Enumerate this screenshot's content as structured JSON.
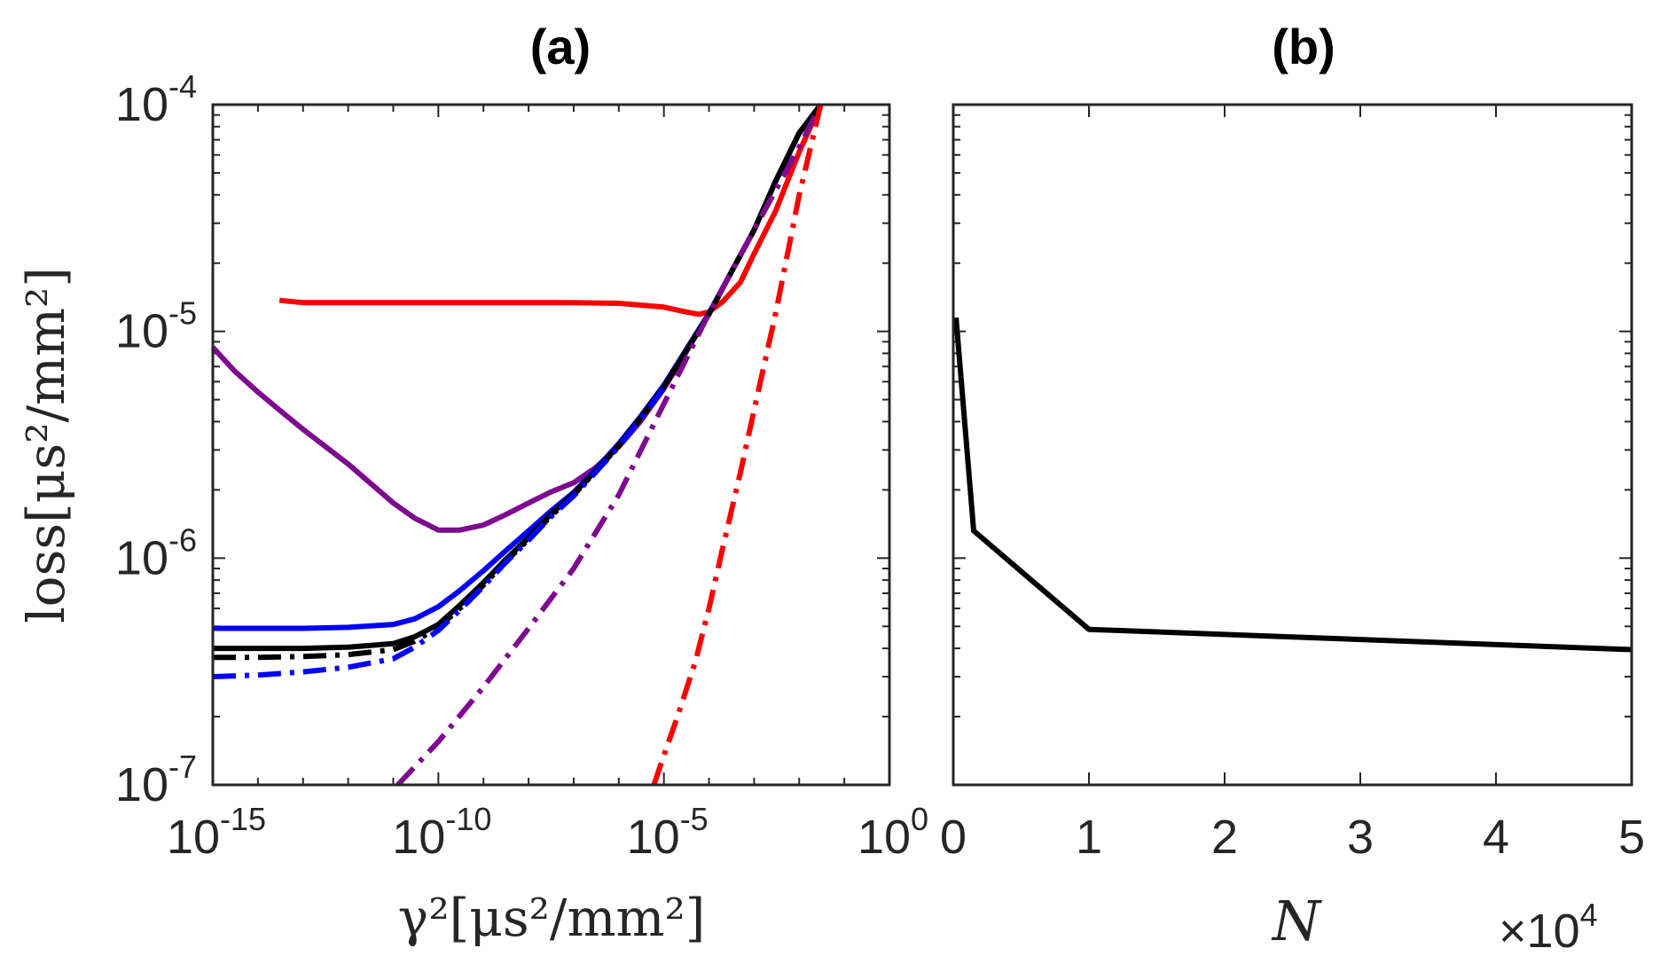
{
  "chart_data": [
    {
      "panel": "a",
      "type": "line",
      "title": "(a)",
      "xscale": "log",
      "yscale": "log",
      "xlim": [
        1e-15,
        1
      ],
      "ylim": [
        1e-07,
        0.0001
      ],
      "xlabel": "γ²[μs²/mm²]",
      "ylabel": "loss[μs²/mm²]",
      "xtick_labels": [
        {
          "base": "10",
          "exp": "-15",
          "value": 1e-15
        },
        {
          "base": "10",
          "exp": "-10",
          "value": 1e-10
        },
        {
          "base": "10",
          "exp": "-5",
          "value": 1e-05
        },
        {
          "base": "10",
          "exp": "0",
          "value": 1
        }
      ],
      "ytick_labels": [
        {
          "base": "10",
          "exp": "-7",
          "value": 1e-07
        },
        {
          "base": "10",
          "exp": "-6",
          "value": 1e-06
        },
        {
          "base": "10",
          "exp": "-5",
          "value": 1e-05
        },
        {
          "base": "10",
          "exp": "-4",
          "value": 0.0001
        }
      ],
      "series": [
        {
          "name": "red-solid",
          "color": "#ff0000",
          "dash": "solid",
          "x": [
            3e-14,
            1e-13,
            1e-12,
            1e-11,
            1e-10,
            1e-09,
            1e-08,
            1e-07,
            1e-06,
            1e-05,
            3e-05,
            6e-05,
            0.0001,
            0.0002,
            0.0005,
            0.001,
            0.003,
            0.01,
            0.03
          ],
          "y": [
            1.37e-05,
            1.34e-05,
            1.34e-05,
            1.34e-05,
            1.34e-05,
            1.34e-05,
            1.34e-05,
            1.34e-05,
            1.33e-05,
            1.28e-05,
            1.22e-05,
            1.19e-05,
            1.22e-05,
            1.35e-05,
            1.65e-05,
            2.2e-05,
            3.4e-05,
            6.2e-05,
            0.0001
          ]
        },
        {
          "name": "purple-solid",
          "color": "#7e0a8f",
          "dash": "solid",
          "x": [
            1e-15,
            3e-15,
            1e-14,
            3e-14,
            1e-13,
            1e-12,
            1e-11,
            3e-11,
            1e-10,
            3e-10,
            1e-09,
            3e-09,
            1e-08,
            3e-08,
            1e-07,
            3e-07,
            1e-06,
            3e-06,
            1e-05,
            3e-05,
            0.0001,
            0.0003,
            0.001,
            0.003,
            0.01,
            0.03
          ],
          "y": [
            8.5e-06,
            6.7e-06,
            5.4e-06,
            4.5e-06,
            3.7e-06,
            2.6e-06,
            1.75e-06,
            1.5e-06,
            1.33e-06,
            1.33e-06,
            1.4e-06,
            1.55e-06,
            1.75e-06,
            1.95e-06,
            2.15e-06,
            2.5e-06,
            3.1e-06,
            4e-06,
            5.6e-06,
            8e-06,
            1.2e-05,
            1.8e-05,
            2.8e-05,
            4.6e-05,
            7.5e-05,
            0.0001
          ]
        },
        {
          "name": "blue-solid",
          "color": "#0000ff",
          "dash": "solid",
          "x": [
            1e-15,
            1e-14,
            1e-13,
            1e-12,
            1e-11,
            3e-11,
            1e-10,
            3e-10,
            1e-09,
            3e-09,
            1e-08,
            3e-08,
            1e-07,
            3e-07,
            1e-06,
            3e-06,
            1e-05,
            3e-05,
            0.0001,
            0.0003,
            0.001,
            0.003,
            0.01,
            0.03
          ],
          "y": [
            4.9e-07,
            4.9e-07,
            4.9e-07,
            4.95e-07,
            5.1e-07,
            5.4e-07,
            6.1e-07,
            7.2e-07,
            8.8e-07,
            1.07e-06,
            1.32e-06,
            1.6e-06,
            1.95e-06,
            2.45e-06,
            3.2e-06,
            4.2e-06,
            5.8e-06,
            8.2e-06,
            1.2e-05,
            1.8e-05,
            2.8e-05,
            4.6e-05,
            7.5e-05,
            0.0001
          ]
        },
        {
          "name": "black-solid",
          "color": "#000000",
          "dash": "solid",
          "x": [
            1e-15,
            1e-14,
            1e-13,
            1e-12,
            1e-11,
            3e-11,
            1e-10,
            3e-10,
            1e-09,
            3e-09,
            1e-08,
            3e-08,
            1e-07,
            3e-07,
            1e-06,
            3e-06,
            1e-05,
            3e-05,
            0.0001,
            0.0003,
            0.001,
            0.003,
            0.01,
            0.03
          ],
          "y": [
            4e-07,
            4e-07,
            4e-07,
            4.05e-07,
            4.2e-07,
            4.5e-07,
            5.1e-07,
            6.2e-07,
            7.8e-07,
            9.8e-07,
            1.23e-06,
            1.55e-06,
            1.92e-06,
            2.42e-06,
            3.15e-06,
            4.15e-06,
            5.7e-06,
            8.1e-06,
            1.19e-05,
            1.8e-05,
            2.8e-05,
            4.6e-05,
            7.5e-05,
            0.0001
          ]
        },
        {
          "name": "black-dashdot",
          "color": "#000000",
          "dash": "dashdot",
          "x": [
            1e-15,
            1e-14,
            1e-13,
            1e-12,
            1e-11,
            3e-11,
            1e-10,
            3e-10,
            1e-09,
            3e-09,
            1e-08,
            3e-08,
            1e-07,
            3e-07,
            1e-06,
            3e-06,
            1e-05
          ],
          "y": [
            3.65e-07,
            3.65e-07,
            3.68e-07,
            3.75e-07,
            3.95e-07,
            4.3e-07,
            4.95e-07,
            6e-07,
            7.6e-07,
            9.6e-07,
            1.21e-06,
            1.52e-06,
            1.9e-06,
            2.4e-06,
            3.12e-06,
            4.1e-06,
            5.65e-06
          ]
        },
        {
          "name": "blue-dashdot",
          "color": "#0000ff",
          "dash": "dashdot",
          "x": [
            1e-15,
            1e-14,
            1e-13,
            1e-12,
            1e-11,
            3e-11,
            1e-10,
            3e-10,
            1e-09,
            3e-09,
            1e-08,
            3e-08,
            1e-07,
            3e-07,
            1e-06,
            3e-06,
            1e-05
          ],
          "y": [
            3e-07,
            3.05e-07,
            3.15e-07,
            3.3e-07,
            3.6e-07,
            4.05e-07,
            4.8e-07,
            5.9e-07,
            7.5e-07,
            9.5e-07,
            1.2e-06,
            1.51e-06,
            1.88e-06,
            2.38e-06,
            3.1e-06,
            4.1e-06,
            5.6e-06
          ]
        },
        {
          "name": "purple-dashdot",
          "color": "#7e0a8f",
          "dash": "dashdot",
          "x": [
            1.26e-11,
            1e-10,
            1e-09,
            1e-08,
            1e-07,
            1e-06,
            1e-05,
            0.0001,
            0.001,
            0.01,
            0.03
          ],
          "y": [
            1e-07,
            1.55e-07,
            2.7e-07,
            4.9e-07,
            9e-07,
            1.9e-06,
            4.8e-06,
            1.2e-05,
            2.8e-05,
            6.5e-05,
            0.0001
          ]
        },
        {
          "name": "red-dashdot",
          "color": "#ff0000",
          "dash": "dashdot",
          "x": [
            6e-06,
            1e-05,
            2e-05,
            5e-05,
            0.0001,
            0.0002,
            0.0005,
            0.001,
            0.003,
            0.01,
            0.03
          ],
          "y": [
            1e-07,
            1.35e-07,
            2e-07,
            3.5e-07,
            6e-07,
            1.1e-06,
            2.4e-06,
            4.5e-06,
            1.2e-05,
            4e-05,
            0.0001
          ]
        }
      ]
    },
    {
      "panel": "b",
      "type": "line",
      "title": "(b)",
      "xscale": "linear",
      "yscale": "log",
      "xlim": [
        0,
        5
      ],
      "ylim": [
        1e-07,
        0.0001
      ],
      "xlabel": "N",
      "x_multiplier": {
        "prefix": "×10",
        "exp": "4"
      },
      "xtick_labels": [
        "0",
        "1",
        "2",
        "3",
        "4",
        "5"
      ],
      "series": [
        {
          "name": "loss-vs-N",
          "color": "#000000",
          "dash": "solid",
          "x": [
            0.02,
            0.15,
            1,
            5
          ],
          "y": [
            1.15e-05,
            1.32e-06,
            4.85e-07,
            3.95e-07
          ]
        }
      ]
    }
  ]
}
